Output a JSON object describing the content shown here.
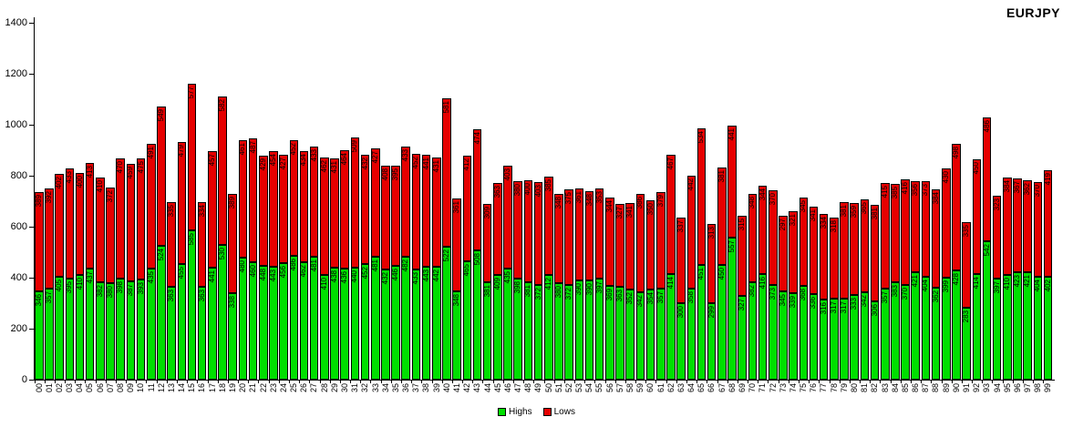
{
  "chart_data": {
    "type": "bar",
    "stacked": true,
    "title": "EURJPY",
    "grid": false,
    "legend_position": "bottom",
    "ylim": [
      0,
      1400
    ],
    "yticks": [
      0,
      200,
      400,
      600,
      800,
      1000,
      1200,
      1400
    ],
    "categories": [
      "00",
      "01",
      "02",
      "03",
      "04",
      "05",
      "06",
      "07",
      "08",
      "09",
      "10",
      "11",
      "12",
      "13",
      "14",
      "15",
      "16",
      "17",
      "18",
      "19",
      "20",
      "21",
      "22",
      "23",
      "24",
      "25",
      "26",
      "27",
      "28",
      "29",
      "30",
      "31",
      "32",
      "33",
      "34",
      "35",
      "36",
      "37",
      "38",
      "39",
      "40",
      "41",
      "42",
      "43",
      "44",
      "45",
      "46",
      "47",
      "48",
      "49",
      "50",
      "51",
      "52",
      "53",
      "54",
      "55",
      "56",
      "57",
      "58",
      "59",
      "60",
      "61",
      "62",
      "63",
      "64",
      "65",
      "66",
      "67",
      "68",
      "69",
      "70",
      "71",
      "72",
      "73",
      "74",
      "75",
      "76",
      "77",
      "78",
      "79",
      "80",
      "81",
      "82",
      "83",
      "84",
      "85",
      "86",
      "87",
      "88",
      "89",
      "90",
      "91",
      "92",
      "93",
      "94",
      "95",
      "96",
      "97",
      "98",
      "99"
    ],
    "series": [
      {
        "name": "Highs",
        "color": "#00df00",
        "values": [
          346,
          357,
          405,
          395,
          410,
          437,
          382,
          380,
          398,
          387,
          393,
          435,
          524,
          363,
          455,
          585,
          363,
          441,
          530,
          338,
          480,
          460,
          448,
          443,
          456,
          486,
          462,
          481,
          410,
          438,
          436,
          440,
          452,
          481,
          432,
          446,
          482,
          433,
          443,
          442,
          522,
          348,
          465,
          508,
          381,
          409,
          435,
          398,
          381,
          372,
          412,
          380,
          372,
          390,
          390,
          397,
          369,
          363,
          352,
          342,
          354,
          357,
          414,
          300,
          358,
          451,
          299,
          450,
          557,
          327,
          382,
          416,
          373,
          345,
          339,
          368,
          336,
          316,
          317,
          317,
          333,
          342,
          306,
          357,
          383,
          370,
          421,
          404,
          362,
          399,
          428,
          283,
          414,
          542,
          397,
          410,
          423,
          421,
          404,
          402
        ]
      },
      {
        "name": "Lows",
        "color": "#e60000",
        "values": [
          389,
          392,
          402,
          433,
          400,
          413,
          410,
          372,
          470,
          459,
          475,
          491,
          549,
          335,
          479,
          577,
          334,
          457,
          582,
          389,
          461,
          487,
          429,
          454,
          427,
          452,
          434,
          433,
          462,
          431,
          464,
          509,
          432,
          427,
          408,
          395,
          433,
          452,
          441,
          431,
          581,
          361,
          412,
          474,
          309,
          363,
          403,
          380,
          400,
          403,
          385,
          348,
          375,
          361,
          348,
          353,
          344,
          327,
          341,
          386,
          350,
          379,
          467,
          337,
          442,
          534,
          313,
          381,
          441,
          315,
          348,
          344,
          370,
          297,
          321,
          345,
          341,
          334,
          318,
          381,
          359,
          365,
          381,
          415,
          385,
          416,
          356,
          373,
          384,
          430,
          498,
          335,
          450,
          486,
          323,
          384,
          367,
          362,
          370,
          419
        ]
      }
    ]
  }
}
